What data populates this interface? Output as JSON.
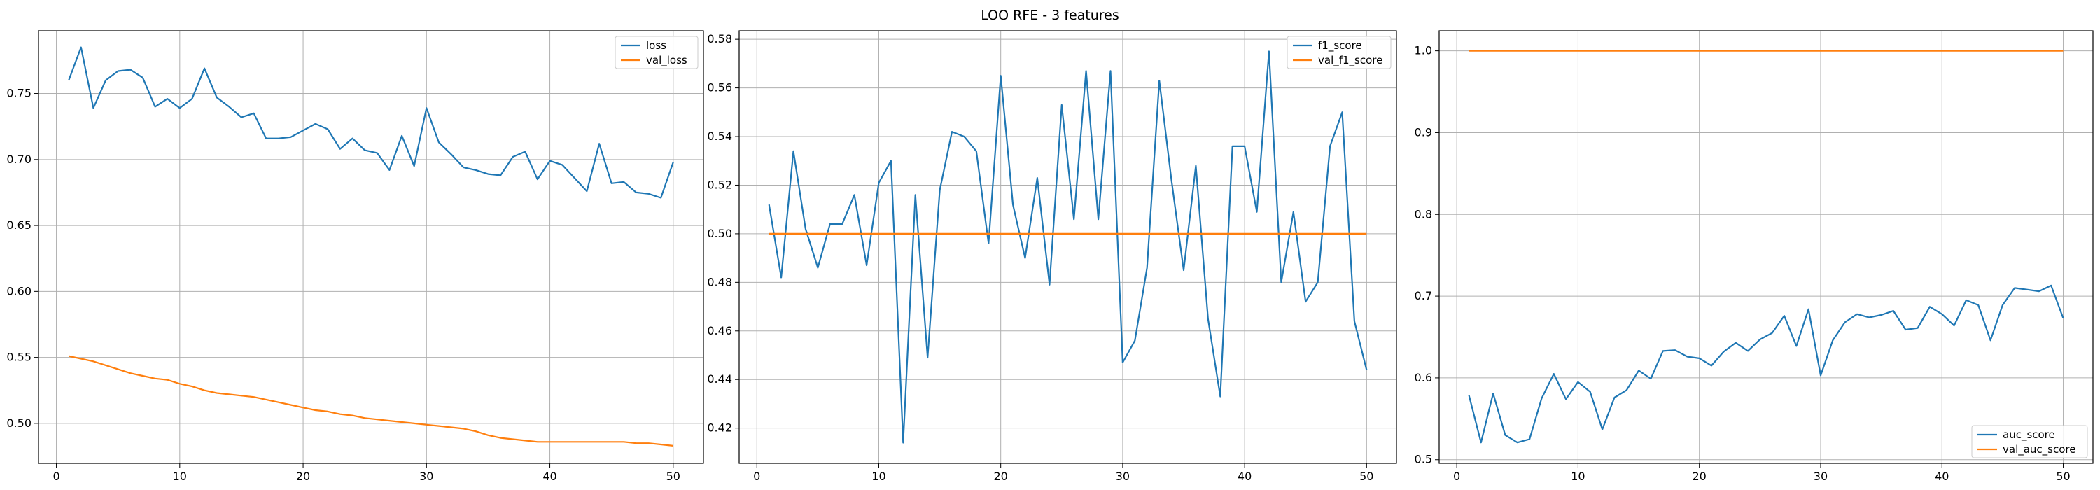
{
  "figure": {
    "title": "LOO RFE - 3 features"
  },
  "colors": {
    "series1": "#1f77b4",
    "series2": "#ff7f0e",
    "grid": "#b0b0b0",
    "axes": "#000000"
  },
  "chart_data": [
    {
      "type": "line",
      "title": "",
      "xlabel": "",
      "ylabel": "",
      "xlim": [
        -1.45,
        52.45
      ],
      "ylim": [
        0.4697,
        0.7975
      ],
      "xticks": [
        0,
        10,
        20,
        30,
        40,
        50
      ],
      "yticks": [
        0.5,
        0.55,
        0.6,
        0.65,
        0.7,
        0.75
      ],
      "ytick_format": 2,
      "grid": true,
      "legend_position": "top-right",
      "x": [
        1,
        2,
        3,
        4,
        5,
        6,
        7,
        8,
        9,
        10,
        11,
        12,
        13,
        14,
        15,
        16,
        17,
        18,
        19,
        20,
        21,
        22,
        23,
        24,
        25,
        26,
        27,
        28,
        29,
        30,
        31,
        32,
        33,
        34,
        35,
        36,
        37,
        38,
        39,
        40,
        41,
        42,
        43,
        44,
        45,
        46,
        47,
        48,
        49,
        50
      ],
      "series": [
        {
          "name": "loss",
          "values": [
            0.76,
            0.785,
            0.739,
            0.76,
            0.767,
            0.768,
            0.762,
            0.74,
            0.746,
            0.739,
            0.746,
            0.769,
            0.747,
            0.74,
            0.732,
            0.735,
            0.716,
            0.716,
            0.717,
            0.722,
            0.727,
            0.723,
            0.708,
            0.716,
            0.707,
            0.705,
            0.692,
            0.718,
            0.695,
            0.739,
            0.713,
            0.704,
            0.694,
            0.692,
            0.689,
            0.688,
            0.702,
            0.706,
            0.685,
            0.699,
            0.696,
            0.686,
            0.676,
            0.712,
            0.682,
            0.683,
            0.675,
            0.674,
            0.671,
            0.698
          ]
        },
        {
          "name": "val_loss",
          "values": [
            0.551,
            0.549,
            0.547,
            0.544,
            0.541,
            0.538,
            0.536,
            0.534,
            0.533,
            0.53,
            0.528,
            0.525,
            0.523,
            0.522,
            0.521,
            0.52,
            0.518,
            0.516,
            0.514,
            0.512,
            0.51,
            0.509,
            0.507,
            0.506,
            0.504,
            0.503,
            0.502,
            0.501,
            0.5,
            0.499,
            0.498,
            0.497,
            0.496,
            0.494,
            0.491,
            0.489,
            0.488,
            0.487,
            0.486,
            0.486,
            0.486,
            0.486,
            0.486,
            0.486,
            0.486,
            0.486,
            0.485,
            0.485,
            0.484,
            0.483
          ]
        }
      ]
    },
    {
      "type": "line",
      "title": "",
      "xlabel": "",
      "ylabel": "",
      "xlim": [
        -1.45,
        52.45
      ],
      "ylim": [
        0.4055,
        0.5835
      ],
      "xticks": [
        0,
        10,
        20,
        30,
        40,
        50
      ],
      "yticks": [
        0.42,
        0.44,
        0.46,
        0.48,
        0.5,
        0.52,
        0.54,
        0.56,
        0.58
      ],
      "ytick_format": 2,
      "grid": true,
      "legend_position": "top-right",
      "x": [
        1,
        2,
        3,
        4,
        5,
        6,
        7,
        8,
        9,
        10,
        11,
        12,
        13,
        14,
        15,
        16,
        17,
        18,
        19,
        20,
        21,
        22,
        23,
        24,
        25,
        26,
        27,
        28,
        29,
        30,
        31,
        32,
        33,
        34,
        35,
        36,
        37,
        38,
        39,
        40,
        41,
        42,
        43,
        44,
        45,
        46,
        47,
        48,
        49,
        50
      ],
      "series": [
        {
          "name": "f1_score",
          "values": [
            0.512,
            0.482,
            0.534,
            0.502,
            0.486,
            0.504,
            0.504,
            0.516,
            0.487,
            0.521,
            0.53,
            0.414,
            0.516,
            0.449,
            0.518,
            0.542,
            0.54,
            0.534,
            0.496,
            0.565,
            0.512,
            0.49,
            0.523,
            0.479,
            0.553,
            0.506,
            0.567,
            0.506,
            0.567,
            0.447,
            0.456,
            0.486,
            0.563,
            0.522,
            0.485,
            0.528,
            0.465,
            0.433,
            0.536,
            0.536,
            0.509,
            0.575,
            0.48,
            0.509,
            0.472,
            0.48,
            0.536,
            0.55,
            0.464,
            0.444
          ]
        },
        {
          "name": "val_f1_score",
          "values": [
            0.5,
            0.5,
            0.5,
            0.5,
            0.5,
            0.5,
            0.5,
            0.5,
            0.5,
            0.5,
            0.5,
            0.5,
            0.5,
            0.5,
            0.5,
            0.5,
            0.5,
            0.5,
            0.5,
            0.5,
            0.5,
            0.5,
            0.5,
            0.5,
            0.5,
            0.5,
            0.5,
            0.5,
            0.5,
            0.5,
            0.5,
            0.5,
            0.5,
            0.5,
            0.5,
            0.5,
            0.5,
            0.5,
            0.5,
            0.5,
            0.5,
            0.5,
            0.5,
            0.5,
            0.5,
            0.5,
            0.5,
            0.5,
            0.5,
            0.5
          ]
        }
      ]
    },
    {
      "type": "line",
      "title": "",
      "xlabel": "",
      "ylabel": "",
      "xlim": [
        -1.45,
        52.45
      ],
      "ylim": [
        0.4955,
        1.0245
      ],
      "xticks": [
        0,
        10,
        20,
        30,
        40,
        50
      ],
      "yticks": [
        0.5,
        0.6,
        0.7,
        0.8,
        0.9,
        1.0
      ],
      "ytick_format": 1,
      "grid": true,
      "legend_position": "lower-right",
      "x": [
        1,
        2,
        3,
        4,
        5,
        6,
        7,
        8,
        9,
        10,
        11,
        12,
        13,
        14,
        15,
        16,
        17,
        18,
        19,
        20,
        21,
        22,
        23,
        24,
        25,
        26,
        27,
        28,
        29,
        30,
        31,
        32,
        33,
        34,
        35,
        36,
        37,
        38,
        39,
        40,
        41,
        42,
        43,
        44,
        45,
        46,
        47,
        48,
        49,
        50
      ],
      "series": [
        {
          "name": "auc_score",
          "values": [
            0.579,
            0.521,
            0.581,
            0.53,
            0.521,
            0.525,
            0.575,
            0.605,
            0.574,
            0.595,
            0.583,
            0.537,
            0.576,
            0.585,
            0.609,
            0.599,
            0.633,
            0.634,
            0.626,
            0.624,
            0.615,
            0.632,
            0.643,
            0.633,
            0.647,
            0.655,
            0.676,
            0.639,
            0.684,
            0.603,
            0.646,
            0.668,
            0.678,
            0.674,
            0.677,
            0.682,
            0.659,
            0.661,
            0.687,
            0.678,
            0.664,
            0.695,
            0.689,
            0.646,
            0.689,
            0.71,
            0.708,
            0.706,
            0.713,
            0.673
          ]
        },
        {
          "name": "val_auc_score",
          "values": [
            1.0,
            1.0,
            1.0,
            1.0,
            1.0,
            1.0,
            1.0,
            1.0,
            1.0,
            1.0,
            1.0,
            1.0,
            1.0,
            1.0,
            1.0,
            1.0,
            1.0,
            1.0,
            1.0,
            1.0,
            1.0,
            1.0,
            1.0,
            1.0,
            1.0,
            1.0,
            1.0,
            1.0,
            1.0,
            1.0,
            1.0,
            1.0,
            1.0,
            1.0,
            1.0,
            1.0,
            1.0,
            1.0,
            1.0,
            1.0,
            1.0,
            1.0,
            1.0,
            1.0,
            1.0,
            1.0,
            1.0,
            1.0,
            1.0,
            1.0
          ]
        }
      ]
    }
  ]
}
